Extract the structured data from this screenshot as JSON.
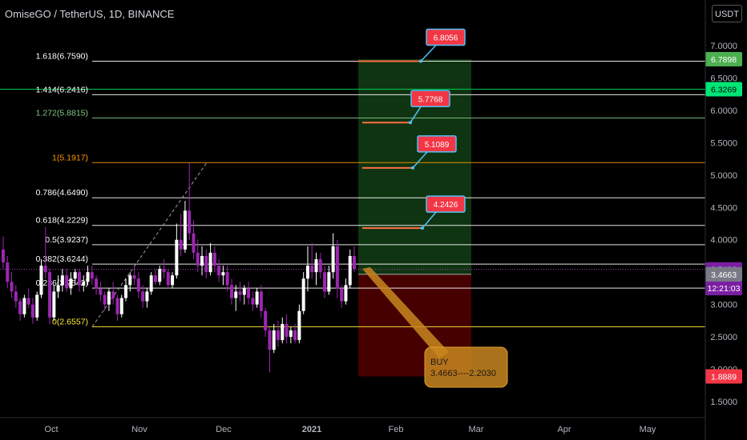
{
  "header": {
    "title": "OmiseGO / TetherUS, 1D, BINANCE",
    "unit": "USDT"
  },
  "chart_data": {
    "type": "candlestick",
    "ylim": [
      1.5,
      7.3
    ],
    "y_ticks": [
      "1.5000",
      "2.0000",
      "2.5000",
      "3.0000",
      "3.5000",
      "4.0000",
      "4.5000",
      "5.0000",
      "5.5000",
      "6.0000",
      "6.5000",
      "7.0000"
    ],
    "x_ticks": [
      "Oct",
      "Nov",
      "Dec",
      "2021",
      "Feb",
      "Mar",
      "Apr",
      "May"
    ],
    "fib_levels": [
      {
        "label": "1.618(6.7590)",
        "value": 6.759,
        "color": "#ffffff"
      },
      {
        "label": "1.414(6.2416)",
        "value": 6.2416,
        "color": "#ffffff"
      },
      {
        "label": "1.272(5.8815)",
        "value": 5.8815,
        "color": "#81c784"
      },
      {
        "label": "1(5.1917)",
        "value": 5.1917,
        "color": "#ff9800"
      },
      {
        "label": "0.786(4.6490)",
        "value": 4.649,
        "color": "#ffffff"
      },
      {
        "label": "0.618(4.2229)",
        "value": 4.2229,
        "color": "#ffffff"
      },
      {
        "label": "0.5(3.9237)",
        "value": 3.9237,
        "color": "#ffffff"
      },
      {
        "label": "0.382(3.6244)",
        "value": 3.6244,
        "color": "#ffffff"
      },
      {
        "label": "0.236(3.2542)",
        "value": 3.2542,
        "color": "#ffffff"
      },
      {
        "label": "0(2.6557)",
        "value": 2.6557,
        "color": "#ffeb3b"
      }
    ],
    "targets": [
      {
        "label": "6.8056",
        "value": 6.759
      },
      {
        "label": "5.7768",
        "value": 5.81
      },
      {
        "label": "5.1089",
        "value": 5.11
      },
      {
        "label": "4.2426",
        "value": 4.18
      }
    ],
    "axis_labels": [
      {
        "text": "6.7898",
        "value": 6.7898,
        "bg": "#4caf50",
        "color": "#ffffff"
      },
      {
        "text": "6.3269",
        "value": 6.3269,
        "bg": "#00e676",
        "color": "#000000"
      },
      {
        "text": "3.5426",
        "value": 3.5426,
        "bg": "#7b1fa2",
        "color": "#ffffff"
      },
      {
        "text": "12:21:03",
        "value": 3.2542,
        "bg": "#7b1fa2",
        "color": "#ffffff"
      },
      {
        "text": "3.4663",
        "value": 3.4663,
        "bg": "#787b86",
        "color": "#ffffff"
      },
      {
        "text": "1.8889",
        "value": 1.8889,
        "bg": "#f23645",
        "color": "#ffffff"
      }
    ],
    "position": {
      "type": "long",
      "entry": 3.4663,
      "stop": 1.8889,
      "target": 6.7898,
      "note_line1": "BUY",
      "note_line2": "3.4663----2.2030"
    },
    "green_line": 6.3269,
    "current_price": 3.5426,
    "colors": {
      "up": "#ffffff",
      "down": "#9c27b0",
      "profit": "#1b5e20",
      "loss": "#7f0000",
      "annotation": "#c8861f"
    },
    "candles": [
      [
        3.85,
        4.05,
        3.55,
        3.65
      ],
      [
        3.65,
        3.75,
        3.25,
        3.35
      ],
      [
        3.35,
        3.5,
        3.1,
        3.2
      ],
      [
        3.2,
        3.3,
        2.95,
        3.05
      ],
      [
        3.05,
        3.1,
        2.75,
        2.85
      ],
      [
        2.85,
        3.15,
        2.8,
        3.1
      ],
      [
        3.1,
        3.25,
        2.95,
        3.0
      ],
      [
        3.0,
        3.1,
        2.7,
        2.8
      ],
      [
        2.8,
        3.2,
        2.75,
        3.15
      ],
      [
        3.15,
        3.7,
        3.1,
        3.6
      ],
      [
        3.6,
        4.2,
        3.4,
        3.5
      ],
      [
        3.5,
        3.55,
        2.7,
        2.8
      ],
      [
        2.8,
        3.3,
        2.75,
        3.2
      ],
      [
        3.2,
        3.45,
        3.1,
        3.3
      ],
      [
        3.3,
        3.55,
        3.2,
        3.45
      ],
      [
        3.45,
        3.55,
        3.2,
        3.25
      ],
      [
        3.25,
        3.5,
        3.15,
        3.4
      ],
      [
        3.4,
        3.55,
        3.3,
        3.5
      ],
      [
        3.5,
        3.55,
        3.2,
        3.3
      ],
      [
        3.3,
        3.45,
        3.2,
        3.35
      ],
      [
        3.35,
        3.6,
        3.3,
        3.5
      ],
      [
        3.5,
        3.6,
        3.3,
        3.4
      ],
      [
        3.4,
        3.45,
        3.15,
        3.25
      ],
      [
        3.25,
        3.35,
        3.05,
        3.15
      ],
      [
        3.15,
        3.2,
        2.9,
        3.0
      ],
      [
        3.0,
        3.25,
        2.9,
        3.2
      ],
      [
        3.2,
        3.35,
        3.0,
        3.1
      ],
      [
        3.1,
        3.15,
        2.75,
        2.85
      ],
      [
        2.85,
        3.15,
        2.8,
        3.1
      ],
      [
        3.1,
        3.4,
        3.05,
        3.3
      ],
      [
        3.3,
        3.5,
        3.2,
        3.45
      ],
      [
        3.45,
        3.6,
        3.3,
        3.4
      ],
      [
        3.4,
        3.5,
        3.1,
        3.2
      ],
      [
        3.2,
        3.3,
        2.95,
        3.05
      ],
      [
        3.05,
        3.25,
        2.95,
        3.2
      ],
      [
        3.2,
        3.5,
        3.15,
        3.45
      ],
      [
        3.45,
        3.55,
        3.3,
        3.35
      ],
      [
        3.35,
        3.6,
        3.3,
        3.55
      ],
      [
        3.55,
        3.7,
        3.4,
        3.5
      ],
      [
        3.5,
        3.55,
        3.25,
        3.3
      ],
      [
        3.3,
        3.5,
        3.25,
        3.45
      ],
      [
        3.45,
        4.25,
        3.4,
        4.0
      ],
      [
        4.0,
        4.4,
        3.75,
        3.85
      ],
      [
        3.85,
        4.6,
        3.8,
        4.45
      ],
      [
        4.45,
        5.19,
        4.0,
        4.1
      ],
      [
        4.1,
        4.3,
        3.7,
        3.8
      ],
      [
        3.8,
        4.0,
        3.5,
        3.6
      ],
      [
        3.6,
        3.9,
        3.45,
        3.75
      ],
      [
        3.75,
        3.85,
        3.4,
        3.5
      ],
      [
        3.5,
        3.95,
        3.45,
        3.8
      ],
      [
        3.8,
        3.9,
        3.5,
        3.6
      ],
      [
        3.6,
        3.7,
        3.35,
        3.45
      ],
      [
        3.45,
        3.6,
        3.3,
        3.5
      ],
      [
        3.5,
        3.6,
        3.2,
        3.3
      ],
      [
        3.3,
        3.4,
        3.0,
        3.1
      ],
      [
        3.1,
        3.3,
        2.9,
        3.2
      ],
      [
        3.2,
        3.35,
        3.05,
        3.15
      ],
      [
        3.15,
        3.3,
        3.0,
        3.25
      ],
      [
        3.25,
        3.35,
        3.0,
        3.1
      ],
      [
        3.1,
        3.2,
        2.9,
        3.0
      ],
      [
        3.0,
        3.25,
        2.95,
        3.2
      ],
      [
        3.2,
        3.3,
        2.8,
        2.9
      ],
      [
        2.9,
        2.95,
        2.5,
        2.6
      ],
      [
        2.6,
        2.65,
        1.95,
        2.3
      ],
      [
        2.3,
        2.7,
        2.25,
        2.6
      ],
      [
        2.6,
        2.75,
        2.35,
        2.45
      ],
      [
        2.45,
        2.8,
        2.4,
        2.7
      ],
      [
        2.7,
        2.85,
        2.4,
        2.5
      ],
      [
        2.5,
        2.65,
        2.4,
        2.6
      ],
      [
        2.6,
        2.7,
        2.4,
        2.45
      ],
      [
        2.45,
        3.0,
        2.4,
        2.9
      ],
      [
        2.9,
        3.5,
        2.85,
        3.4
      ],
      [
        3.4,
        3.9,
        3.2,
        3.6
      ],
      [
        3.6,
        3.95,
        3.4,
        3.5
      ],
      [
        3.5,
        3.8,
        3.3,
        3.7
      ],
      [
        3.7,
        3.8,
        3.4,
        3.5
      ],
      [
        3.5,
        3.6,
        3.1,
        3.2
      ],
      [
        3.2,
        3.6,
        3.15,
        3.5
      ],
      [
        3.5,
        4.1,
        3.4,
        3.9
      ],
      [
        3.9,
        4.0,
        3.1,
        3.25
      ],
      [
        3.25,
        3.3,
        2.95,
        3.05
      ],
      [
        3.05,
        3.4,
        3.0,
        3.3
      ],
      [
        3.3,
        3.85,
        3.25,
        3.75
      ],
      [
        3.75,
        3.9,
        3.5,
        3.55
      ]
    ]
  }
}
